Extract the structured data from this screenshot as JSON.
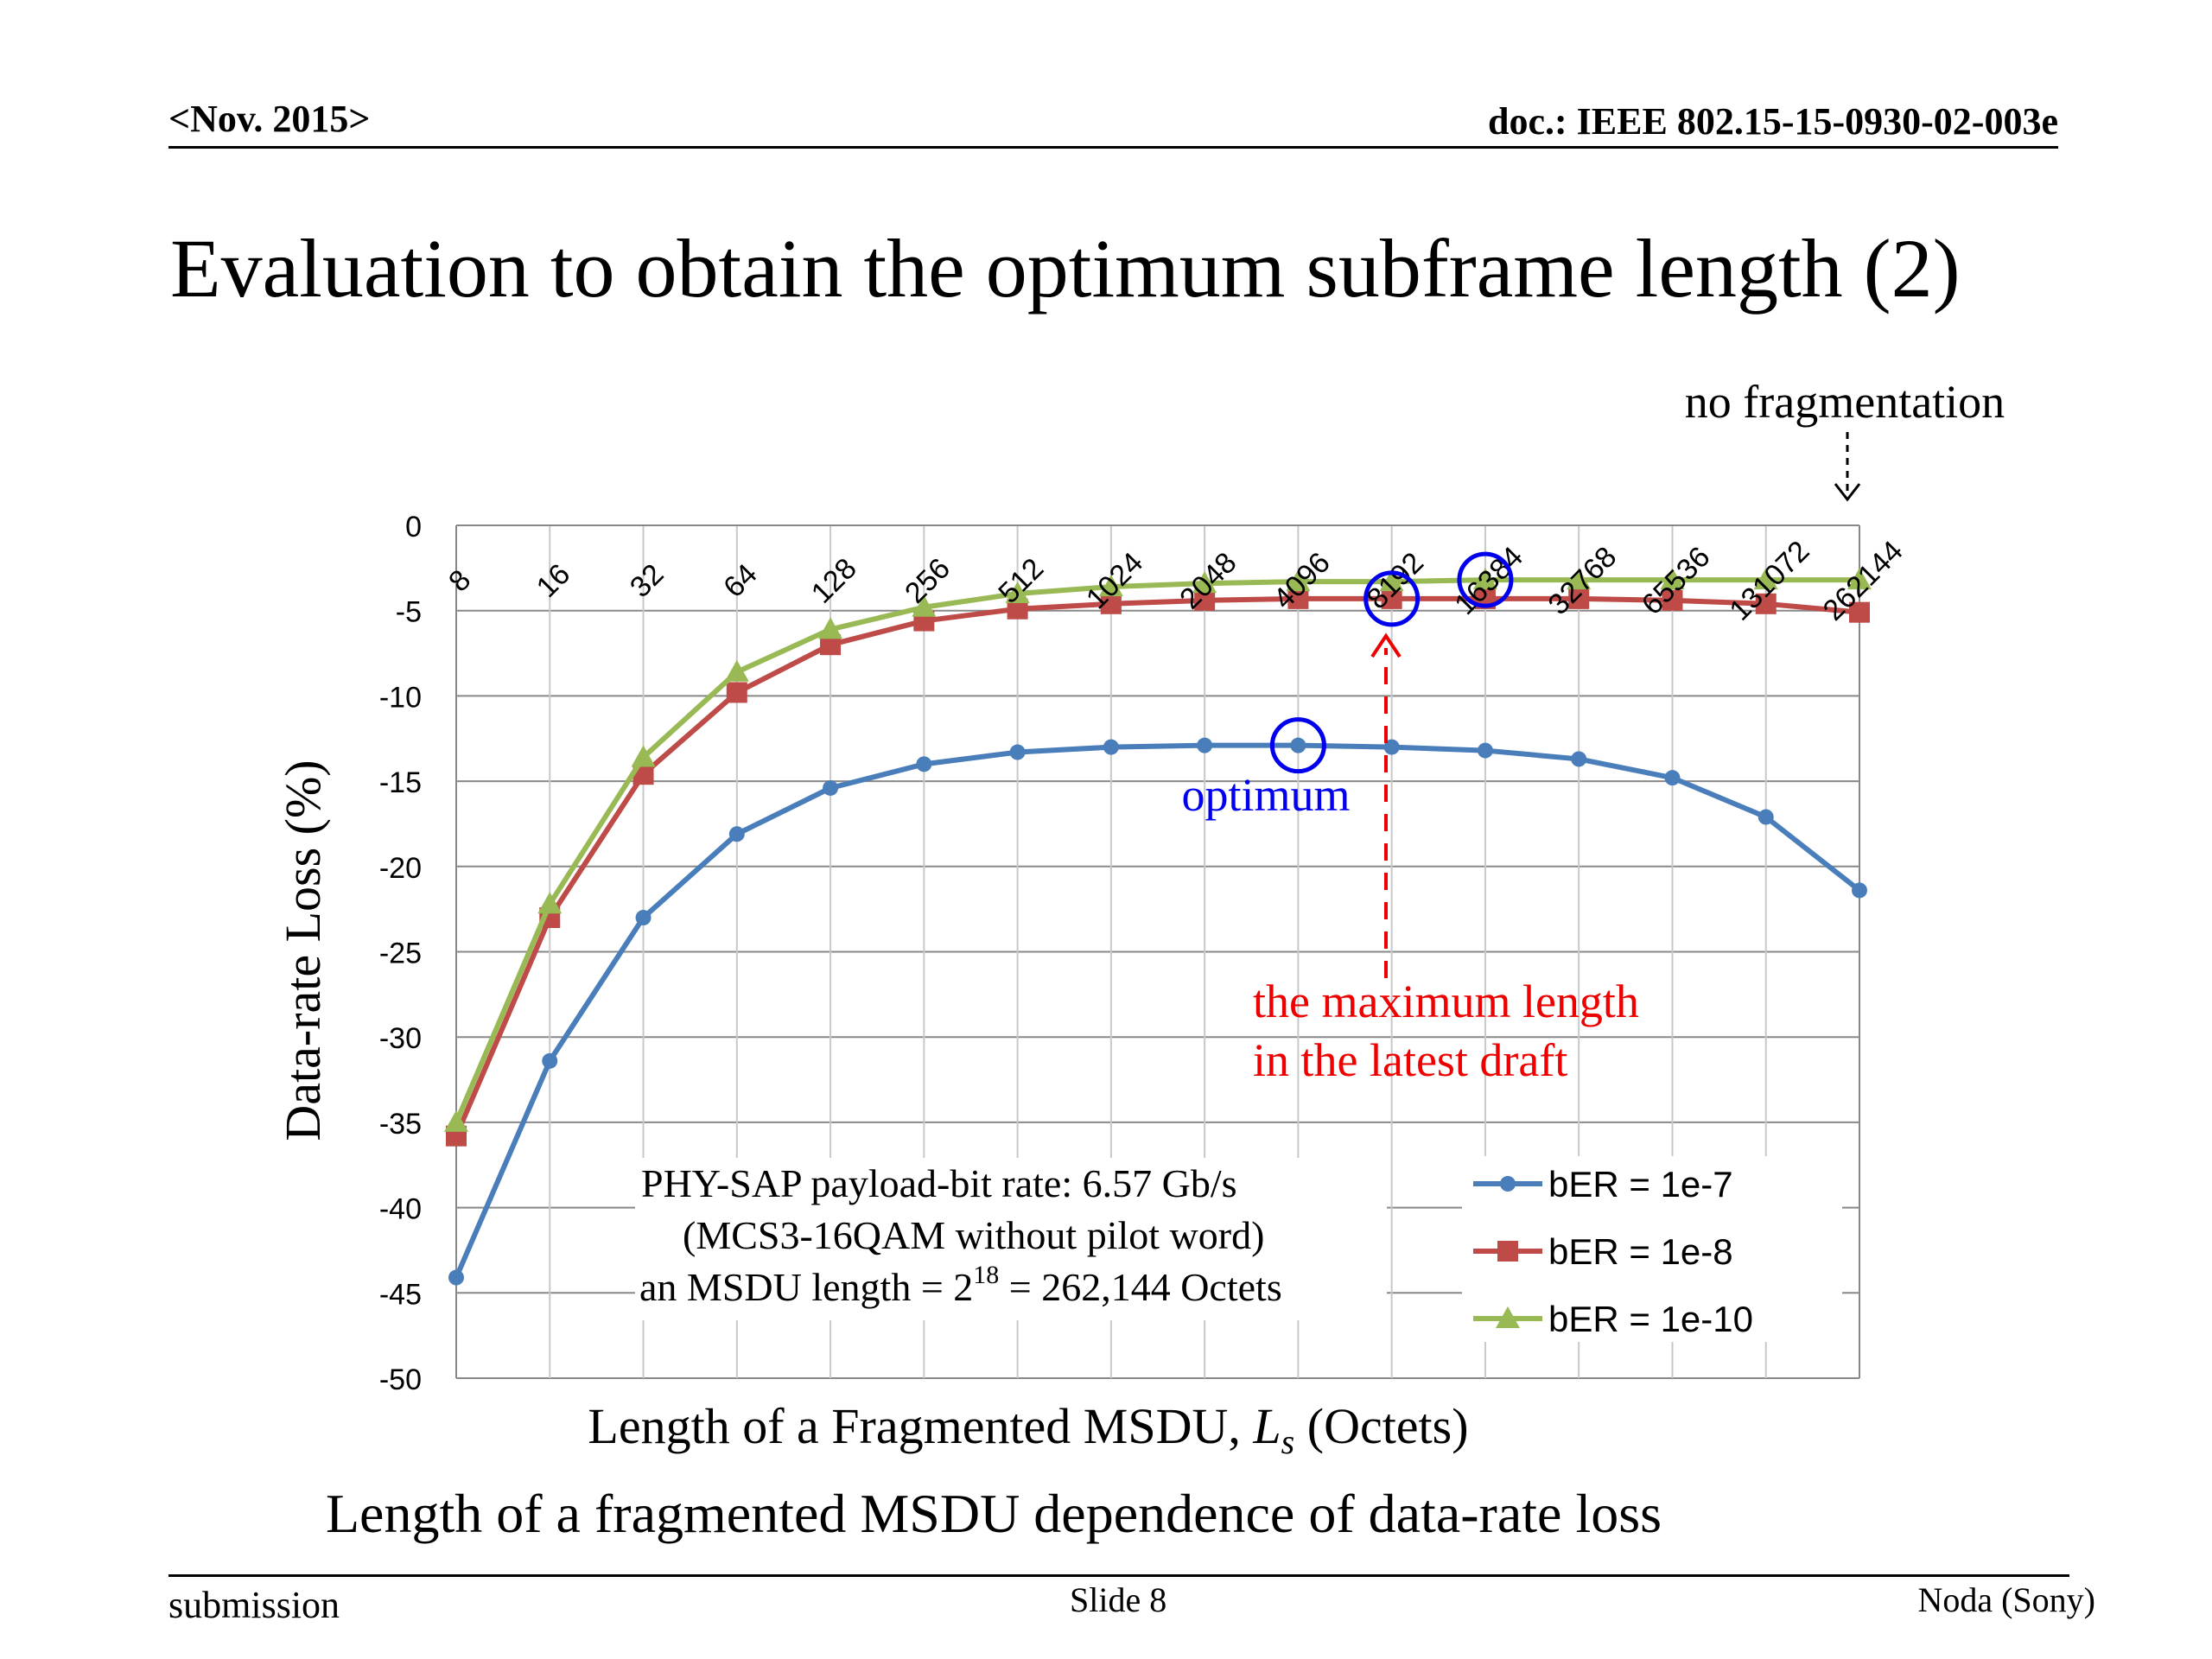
{
  "header": {
    "date": "<Nov. 2015>",
    "doc": "doc.: IEEE 802.15-15-0930-02-003e"
  },
  "slide": {
    "title": "Evaluation to obtain the optimum subframe length (2)",
    "caption": "Length of a fragmented MSDU dependence of data-rate loss"
  },
  "footer": {
    "left": "submission",
    "center": "Slide 8",
    "right": "Noda (Sony)"
  },
  "chart_data": {
    "type": "line",
    "title": "",
    "ylabel": "Data-rate Loss (%)",
    "xlabel_main": "Length of a Fragmented MSDU, ",
    "xlabel_var": "L",
    "xlabel_sub": "s",
    "xlabel_unit": " (Octets)",
    "categories": [
      "8",
      "16",
      "32",
      "64",
      "128",
      "256",
      "512",
      "1024",
      "2048",
      "4096",
      "8192",
      "16384",
      "32768",
      "65536",
      "131072",
      "262144"
    ],
    "ylim": [
      -50,
      0
    ],
    "yticks": [
      "0",
      "-5",
      "-10",
      "-15",
      "-20",
      "-25",
      "-30",
      "-35",
      "-40",
      "-45",
      "-50"
    ],
    "grid": true,
    "legend_position": "bottom-right",
    "series": [
      {
        "name": "bER = 1e-7",
        "color": "#4a7ebb",
        "marker": "circle",
        "values": [
          -44.1,
          -31.4,
          -23.0,
          -18.1,
          -15.4,
          -14.0,
          -13.3,
          -13.0,
          -12.9,
          -12.9,
          -13.0,
          -13.2,
          -13.7,
          -14.8,
          -17.1,
          -21.4
        ]
      },
      {
        "name": "bER = 1e-8",
        "color": "#be4b48",
        "marker": "square",
        "values": [
          -35.8,
          -23.0,
          -14.6,
          -9.8,
          -7.0,
          -5.6,
          -4.9,
          -4.6,
          -4.4,
          -4.3,
          -4.3,
          -4.3,
          -4.3,
          -4.4,
          -4.6,
          -5.1
        ]
      },
      {
        "name": "bER = 1e-10",
        "color": "#98b954",
        "marker": "triangle",
        "values": [
          -35.0,
          -22.2,
          -13.6,
          -8.6,
          -6.1,
          -4.8,
          -4.0,
          -3.6,
          -3.4,
          -3.3,
          -3.3,
          -3.2,
          -3.2,
          -3.2,
          -3.2,
          -3.2
        ]
      }
    ],
    "annotations": {
      "no_fragmentation": "no fragmentation",
      "optimum": "optimum",
      "max_length_line1": "the maximum length",
      "max_length_line2": "in the latest draft",
      "info_line1": "PHY-SAP payload-bit rate: 6.57 Gb/s",
      "info_line2": "(MCS3-16QAM without pilot word)",
      "info_line3_pre": "an MSDU length = 2",
      "info_line3_exp": "18",
      "info_line3_post": "  = 262,144 Octets"
    },
    "highlight_circles": [
      {
        "series": "bER = 1e-7",
        "category": "4096",
        "value": -12.9,
        "color": "#0000ee"
      },
      {
        "series": "bER = 1e-8",
        "category": "8192",
        "value": -4.3,
        "color": "#0000ee"
      },
      {
        "series": "bER = 1e-10",
        "category": "16384",
        "value": -3.2,
        "color": "#0000ee"
      }
    ]
  }
}
